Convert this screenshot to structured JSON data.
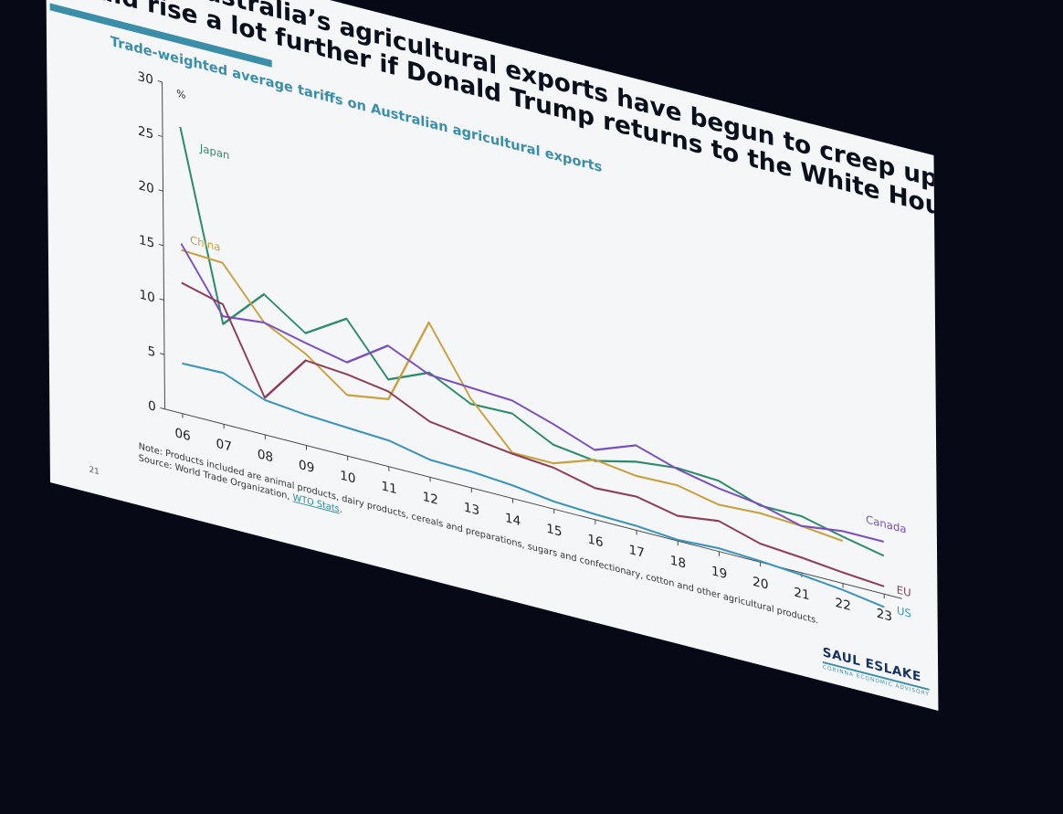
{
  "slide": {
    "title_line1": "ariffs on Australia’s agricultural exports have begun to creep up – and",
    "title_line2": "could rise a lot further if Donald Trump returns to the White House",
    "subtitle": "Trade-weighted average tariffs on Australian agricultural exports",
    "note": "Note: Products included are animal products, dairy products, cereals and preparations, sugars and confectionary, cotton and other agricultural products.",
    "source_prefix": "Source: World Trade Organization, ",
    "source_link": "WTO Stats",
    "source_suffix": ".",
    "page_number": "21",
    "logo_name": "SAUL ESLAKE",
    "logo_sub": "CORINNA ECONOMIC ADVISORY"
  },
  "chart_data": {
    "type": "line",
    "ylabel": "%",
    "ylim": [
      0,
      30
    ],
    "yticks": [
      0,
      5,
      10,
      15,
      20,
      25,
      30
    ],
    "categories": [
      "06",
      "07",
      "08",
      "09",
      "10",
      "11",
      "12",
      "13",
      "14",
      "15",
      "16",
      "17",
      "18",
      "19",
      "20",
      "21",
      "22",
      "23"
    ],
    "grid": false,
    "series": [
      {
        "name": "Japan",
        "color": "#2e8b6a",
        "values": [
          26.3,
          9.2,
          12.9,
          10.3,
          12.6,
          8.0,
          9.6,
          7.7,
          7.8,
          5.9,
          5.4,
          6.3,
          6.7,
          6.5,
          5.2,
          5.2,
          4.3,
          3.5
        ]
      },
      {
        "name": "China",
        "color": "#c8a03c",
        "values": [
          15.0,
          14.8,
          10.3,
          8.4,
          5.6,
          6.2,
          14.2,
          8.2,
          4.2,
          4.2,
          5.5,
          5.0,
          5.1,
          4.3,
          4.5,
          4.3,
          3.9,
          null
        ]
      },
      {
        "name": "Canada",
        "color": "#7a4ebd",
        "values": [
          15.6,
          9.9,
          10.3,
          9.4,
          8.6,
          11.1,
          9.4,
          9.2,
          9.0,
          7.8,
          6.4,
          7.8,
          6.6,
          5.8,
          5.3,
          4.3,
          4.8,
          4.8
        ]
      },
      {
        "name": "EU",
        "color": "#8e3d56",
        "values": [
          12.0,
          11.0,
          3.4,
          7.8,
          7.5,
          6.9,
          5.1,
          4.6,
          4.1,
          3.8,
          2.9,
          3.1,
          2.3,
          2.8,
          1.7,
          1.4,
          1.0,
          0.7
        ]
      },
      {
        "name": "US",
        "color": "#3b93b8",
        "values": [
          4.6,
          4.7,
          3.2,
          2.8,
          2.6,
          2.4,
          1.6,
          1.5,
          1.2,
          0.7,
          0.5,
          0.4,
          0.1,
          0.3,
          0.1,
          -0.2,
          -0.6,
          -1.2
        ]
      }
    ],
    "series_label_positions": {
      "Japan": "upper-left",
      "China": "above-peak",
      "Canada": "right",
      "EU": "right",
      "US": "right"
    }
  }
}
